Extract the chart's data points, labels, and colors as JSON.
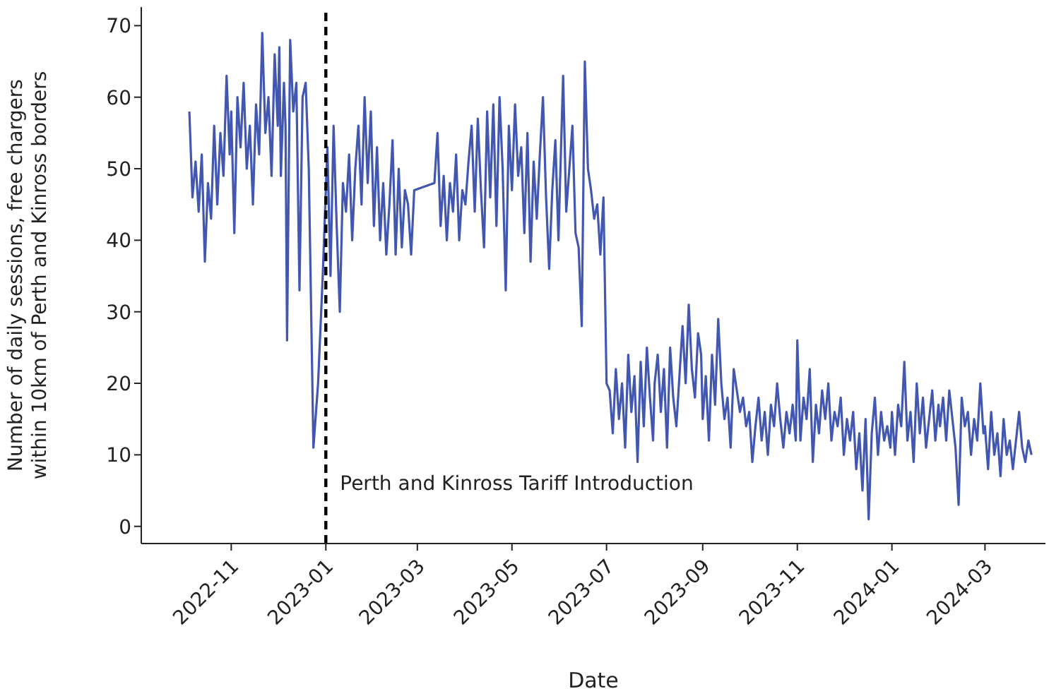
{
  "chart_data": {
    "type": "line",
    "xlabel": "Date",
    "ylabel": "Number of daily sessions, free chargers\nwithin 10km of Perth and Kinross borders",
    "x": [
      "2022-10-05",
      "2022-10-07",
      "2022-10-09",
      "2022-10-11",
      "2022-10-13",
      "2022-10-15",
      "2022-10-17",
      "2022-10-19",
      "2022-10-21",
      "2022-10-23",
      "2022-10-25",
      "2022-10-27",
      "2022-10-29",
      "2022-10-31",
      "2022-11-01",
      "2022-11-03",
      "2022-11-05",
      "2022-11-07",
      "2022-11-09",
      "2022-11-11",
      "2022-11-13",
      "2022-11-15",
      "2022-11-17",
      "2022-11-19",
      "2022-11-21",
      "2022-11-23",
      "2022-11-25",
      "2022-11-27",
      "2022-11-29",
      "2022-12-01",
      "2022-12-02",
      "2022-12-03",
      "2022-12-05",
      "2022-12-06",
      "2022-12-07",
      "2022-12-09",
      "2022-12-11",
      "2022-12-13",
      "2022-12-15",
      "2022-12-17",
      "2022-12-19",
      "2022-12-21",
      "2022-12-24",
      "2022-12-27",
      "2022-12-30",
      "2023-01-02",
      "2023-01-04",
      "2023-01-06",
      "2023-01-08",
      "2023-01-10",
      "2023-01-12",
      "2023-01-14",
      "2023-01-16",
      "2023-01-18",
      "2023-01-20",
      "2023-01-22",
      "2023-01-24",
      "2023-01-26",
      "2023-01-28",
      "2023-01-30",
      "2023-02-01",
      "2023-02-03",
      "2023-02-05",
      "2023-02-07",
      "2023-02-09",
      "2023-02-11",
      "2023-02-13",
      "2023-02-15",
      "2023-02-17",
      "2023-02-19",
      "2023-02-21",
      "2023-02-23",
      "2023-02-25",
      "2023-02-27",
      "2023-03-12",
      "2023-03-14",
      "2023-03-16",
      "2023-03-18",
      "2023-03-20",
      "2023-03-22",
      "2023-03-24",
      "2023-03-26",
      "2023-03-28",
      "2023-03-30",
      "2023-04-01",
      "2023-04-03",
      "2023-04-05",
      "2023-04-07",
      "2023-04-09",
      "2023-04-11",
      "2023-04-13",
      "2023-04-15",
      "2023-04-17",
      "2023-04-19",
      "2023-04-21",
      "2023-04-23",
      "2023-04-25",
      "2023-04-27",
      "2023-04-29",
      "2023-05-01",
      "2023-05-03",
      "2023-05-05",
      "2023-05-07",
      "2023-05-09",
      "2023-05-11",
      "2023-05-13",
      "2023-05-15",
      "2023-05-17",
      "2023-05-19",
      "2023-05-21",
      "2023-05-23",
      "2023-05-25",
      "2023-05-27",
      "2023-05-29",
      "2023-05-31",
      "2023-06-01",
      "2023-06-03",
      "2023-06-05",
      "2023-06-07",
      "2023-06-09",
      "2023-06-11",
      "2023-06-13",
      "2023-06-15",
      "2023-06-17",
      "2023-06-19",
      "2023-06-21",
      "2023-06-23",
      "2023-06-25",
      "2023-06-27",
      "2023-06-29",
      "2023-07-01",
      "2023-07-03",
      "2023-07-05",
      "2023-07-07",
      "2023-07-09",
      "2023-07-11",
      "2023-07-13",
      "2023-07-15",
      "2023-07-17",
      "2023-07-19",
      "2023-07-21",
      "2023-07-23",
      "2023-07-25",
      "2023-07-27",
      "2023-07-29",
      "2023-07-31",
      "2023-08-01",
      "2023-08-03",
      "2023-08-05",
      "2023-08-07",
      "2023-08-09",
      "2023-08-11",
      "2023-08-13",
      "2023-08-15",
      "2023-08-17",
      "2023-08-19",
      "2023-08-21",
      "2023-08-23",
      "2023-08-25",
      "2023-08-27",
      "2023-08-29",
      "2023-08-31",
      "2023-09-01",
      "2023-09-03",
      "2023-09-05",
      "2023-09-07",
      "2023-09-09",
      "2023-09-11",
      "2023-09-13",
      "2023-09-15",
      "2023-09-17",
      "2023-09-19",
      "2023-09-21",
      "2023-09-23",
      "2023-09-25",
      "2023-09-27",
      "2023-09-29",
      "2023-10-01",
      "2023-10-03",
      "2023-10-05",
      "2023-10-07",
      "2023-10-09",
      "2023-10-11",
      "2023-10-13",
      "2023-10-15",
      "2023-10-17",
      "2023-10-19",
      "2023-10-21",
      "2023-10-23",
      "2023-10-25",
      "2023-10-27",
      "2023-10-29",
      "2023-10-31",
      "2023-11-01",
      "2023-11-03",
      "2023-11-05",
      "2023-11-07",
      "2023-11-09",
      "2023-11-11",
      "2023-11-13",
      "2023-11-15",
      "2023-11-17",
      "2023-11-19",
      "2023-11-21",
      "2023-11-23",
      "2023-11-25",
      "2023-11-27",
      "2023-11-29",
      "2023-12-01",
      "2023-12-03",
      "2023-12-05",
      "2023-12-07",
      "2023-12-09",
      "2023-12-11",
      "2023-12-13",
      "2023-12-15",
      "2023-12-17",
      "2023-12-19",
      "2023-12-21",
      "2023-12-23",
      "2023-12-25",
      "2023-12-27",
      "2023-12-29",
      "2023-12-31",
      "2024-01-01",
      "2024-01-03",
      "2024-01-05",
      "2024-01-07",
      "2024-01-09",
      "2024-01-11",
      "2024-01-13",
      "2024-01-15",
      "2024-01-17",
      "2024-01-19",
      "2024-01-21",
      "2024-01-23",
      "2024-01-25",
      "2024-01-27",
      "2024-01-29",
      "2024-01-31",
      "2024-02-01",
      "2024-02-03",
      "2024-02-05",
      "2024-02-07",
      "2024-02-09",
      "2024-02-11",
      "2024-02-13",
      "2024-02-15",
      "2024-02-17",
      "2024-02-19",
      "2024-02-21",
      "2024-02-23",
      "2024-02-25",
      "2024-02-27",
      "2024-02-29",
      "2024-03-01",
      "2024-03-03",
      "2024-03-05",
      "2024-03-07",
      "2024-03-09",
      "2024-03-11",
      "2024-03-13",
      "2024-03-15",
      "2024-03-17",
      "2024-03-19",
      "2024-03-21",
      "2024-03-23",
      "2024-03-25",
      "2024-03-27",
      "2024-03-29",
      "2024-03-31"
    ],
    "series": [
      {
        "color": "#4257b0",
        "values": [
          58,
          46,
          51,
          44,
          52,
          37,
          48,
          43,
          56,
          45,
          55,
          49,
          63,
          52,
          58,
          41,
          60,
          53,
          62,
          50,
          56,
          45,
          59,
          52,
          69,
          55,
          60,
          49,
          66,
          56,
          67,
          49,
          62,
          56,
          26,
          68,
          58,
          62,
          33,
          60,
          62,
          50,
          11,
          20,
          35,
          53,
          35,
          56,
          42,
          30,
          48,
          44,
          52,
          40,
          50,
          56,
          45,
          60,
          48,
          58,
          42,
          53,
          40,
          48,
          38,
          45,
          54,
          38,
          50,
          39,
          47,
          45,
          38,
          47,
          48,
          55,
          42,
          49,
          40,
          48,
          44,
          52,
          40,
          47,
          45,
          51,
          56,
          44,
          57,
          47,
          39,
          58,
          46,
          59,
          42,
          60,
          50,
          33,
          56,
          47,
          59,
          49,
          53,
          41,
          55,
          37,
          51,
          43,
          52,
          60,
          46,
          36,
          47,
          54,
          40,
          48,
          63,
          44,
          50,
          56,
          41,
          39,
          28,
          65,
          50,
          47,
          43,
          45,
          38,
          46,
          20,
          19,
          13,
          22,
          15,
          20,
          11,
          24,
          16,
          21,
          9,
          23,
          14,
          25,
          18,
          12,
          20,
          24,
          16,
          22,
          11,
          25,
          18,
          14,
          21,
          28,
          20,
          31,
          22,
          18,
          27,
          24,
          15,
          21,
          12,
          24,
          17,
          29,
          20,
          15,
          18,
          11,
          22,
          19,
          16,
          18,
          14,
          16,
          9,
          14,
          18,
          12,
          16,
          10,
          17,
          14,
          20,
          15,
          11,
          16,
          13,
          17,
          12,
          26,
          12,
          18,
          15,
          22,
          9,
          17,
          13,
          19,
          15,
          20,
          12,
          16,
          14,
          18,
          10,
          15,
          12,
          16,
          8,
          13,
          5,
          15,
          1,
          13,
          18,
          10,
          16,
          12,
          14,
          11,
          16,
          10,
          17,
          14,
          23,
          12,
          16,
          9,
          20,
          13,
          18,
          11,
          15,
          19,
          12,
          17,
          14,
          18,
          12,
          19,
          15,
          11,
          3,
          18,
          14,
          16,
          10,
          15,
          12,
          20,
          13,
          14,
          8,
          16,
          10,
          13,
          7,
          15,
          10,
          12,
          8,
          12,
          16,
          11,
          9,
          12,
          10
        ]
      }
    ],
    "xlim": [
      "2022-09-04",
      "2024-04-09"
    ],
    "xticks": [
      "2022-11",
      "2023-01",
      "2023-03",
      "2023-05",
      "2023-07",
      "2023-09",
      "2023-11",
      "2024-01",
      "2024-03"
    ],
    "ylim": [
      -2.4,
      72.6
    ],
    "yticks": [
      0,
      10,
      20,
      30,
      40,
      50,
      60,
      70
    ],
    "grid": false,
    "legend": false,
    "marker": "none",
    "line_style": "solid",
    "ref_lines": [
      {
        "axis": "x",
        "value": "2023-01-01",
        "label": "Perth and Kinross Tariff Introduction",
        "color": "#000000",
        "line_style": "dashed"
      }
    ]
  }
}
